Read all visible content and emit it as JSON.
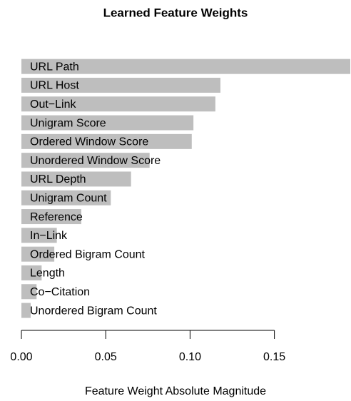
{
  "chart_data": {
    "type": "barh",
    "title": "Learned Feature Weights",
    "x_label": "Feature Weight Absolute Magnitude",
    "categories": [
      "URL Path",
      "URL Host",
      "Out−Link",
      "Unigram Score",
      "Ordered Window Score",
      "Unordered Window Score",
      "URL Depth",
      "Unigram Count",
      "Reference",
      "In−Link",
      "Ordered Bigram Count",
      "Length",
      "Co−Citation",
      "Unordered Bigram Count"
    ],
    "values": [
      0.195,
      0.118,
      0.115,
      0.102,
      0.101,
      0.076,
      0.065,
      0.053,
      0.0355,
      0.021,
      0.0195,
      0.012,
      0.009,
      0.0055
    ],
    "color": "#bebebe",
    "xlim": [
      0,
      0.195
    ],
    "xticks": [
      {
        "value": 0,
        "label": "0.00"
      },
      0.05,
      {
        "value": 0.1,
        "label": "0.10"
      },
      0.15
    ],
    "grid": false
  }
}
